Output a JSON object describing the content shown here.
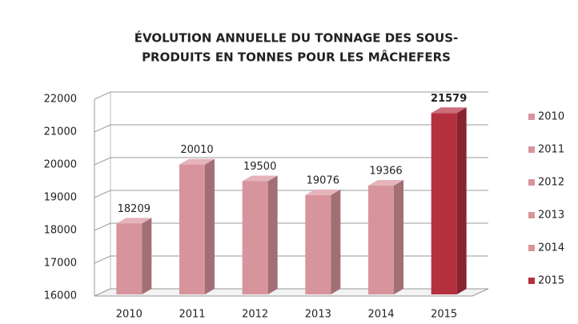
{
  "chart_data": {
    "type": "bar3d",
    "title": [
      "ÉVOLUTION ANNUELLE DU TONNAGE DES SOUS-",
      "PRODUITS EN TONNES POUR LES MÂCHEFERS"
    ],
    "categories": [
      "2010",
      "2011",
      "2012",
      "2013",
      "2014",
      "2015"
    ],
    "values": [
      18209,
      20010,
      19500,
      19076,
      19366,
      21579
    ],
    "colors": [
      "#d8949c",
      "#d8949c",
      "#d8949c",
      "#d8949c",
      "#d8949c",
      "#b5303f"
    ],
    "value_label_colors": [
      "#222222",
      "#222222",
      "#222222",
      "#222222",
      "#222222",
      "#c0293a"
    ],
    "ylim": [
      16000,
      22000
    ],
    "yticks": [
      16000,
      17000,
      18000,
      19000,
      20000,
      21000,
      22000
    ],
    "grid": true,
    "legend": "right"
  }
}
